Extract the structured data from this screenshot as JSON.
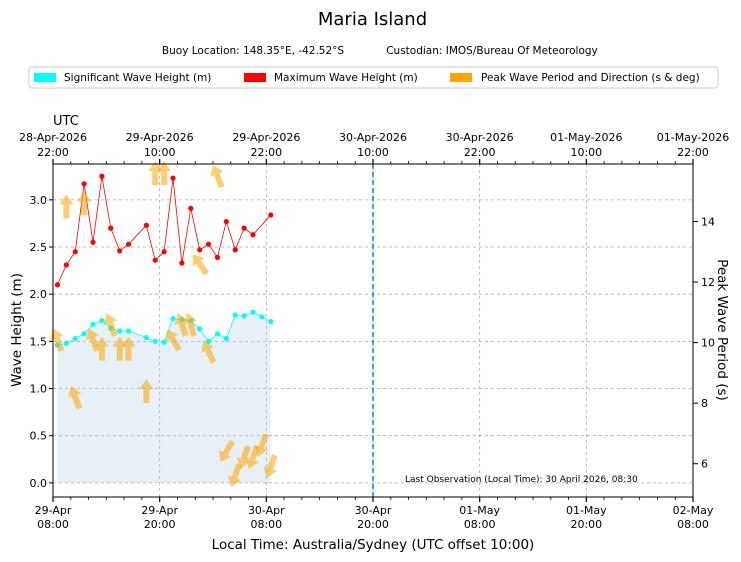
{
  "chart_data": {
    "type": "line",
    "title": "Maria Island",
    "subtitle": {
      "buoy_location": "Buoy Location: 148.35°E, -42.52°S",
      "custodian": "Custodian: IMOS/Bureau Of Meteorology"
    },
    "legend": [
      {
        "label": "Significant Wave Height (m)",
        "color": "#00ffff"
      },
      {
        "label": "Maximum Wave Height (m)",
        "color": "#ff0000"
      },
      {
        "label": "Peak Wave Period and Direction (s & deg)",
        "color": "#ffa500"
      }
    ],
    "legend_placement": "top",
    "xlabel": "Local Time: Australia/Sydney (UTC offset 10:00)",
    "top_axis_label": "UTC",
    "ylabel": "Wave Height (m)",
    "y2label": "Peak Wave Period (s)",
    "x_range_hours": [
      0,
      72
    ],
    "ylim": [
      -0.15,
      3.38
    ],
    "y2lim": [
      4.9,
      15.9
    ],
    "y_ticks": [
      0.0,
      0.5,
      1.0,
      1.5,
      2.0,
      2.5,
      3.0
    ],
    "y_tick_labels": [
      "0.0",
      "0.5",
      "1.0",
      "1.5",
      "2.0",
      "2.5",
      "3.0"
    ],
    "y2_ticks": [
      6,
      8,
      10,
      12,
      14
    ],
    "y2_tick_labels": [
      "6",
      "8",
      "10",
      "12",
      "14"
    ],
    "x_ticks": [
      {
        "hours": 0,
        "line1": "29-Apr",
        "line2": "08:00"
      },
      {
        "hours": 12,
        "line1": "29-Apr",
        "line2": "20:00"
      },
      {
        "hours": 24,
        "line1": "30-Apr",
        "line2": "08:00"
      },
      {
        "hours": 36,
        "line1": "30-Apr",
        "line2": "20:00"
      },
      {
        "hours": 48,
        "line1": "01-May",
        "line2": "08:00"
      },
      {
        "hours": 60,
        "line1": "01-May",
        "line2": "20:00"
      },
      {
        "hours": 72,
        "line1": "02-May",
        "line2": "08:00"
      }
    ],
    "top_ticks": [
      {
        "hours": 0,
        "line1": "28-Apr-2026",
        "line2": "22:00"
      },
      {
        "hours": 12,
        "line1": "29-Apr-2026",
        "line2": "10:00"
      },
      {
        "hours": 24,
        "line1": "29-Apr-2026",
        "line2": "22:00"
      },
      {
        "hours": 36,
        "line1": "30-Apr-2026",
        "line2": "10:00"
      },
      {
        "hours": 48,
        "line1": "30-Apr-2026",
        "line2": "22:00"
      },
      {
        "hours": 60,
        "line1": "01-May-2026",
        "line2": "10:00"
      },
      {
        "hours": 72,
        "line1": "01-May-2026",
        "line2": "22:00"
      }
    ],
    "now_line_hours": 36,
    "annotation": "Last Observation (Local Time): 30 April 2026, 08:30",
    "series": [
      {
        "name": "Significant Wave Height (m)",
        "color": "#00ffff",
        "x": [
          0.5,
          1.5,
          2.5,
          3.5,
          4.5,
          5.5,
          6.5,
          7.5,
          8.5,
          10.5,
          11.5,
          12.5,
          13.5,
          14.5,
          15.5,
          16.5,
          17.5,
          18.5,
          19.5,
          20.5,
          21.5,
          22.5,
          23.5,
          24.5
        ],
        "values": [
          1.46,
          1.48,
          1.53,
          1.58,
          1.68,
          1.72,
          1.64,
          1.61,
          1.61,
          1.54,
          1.5,
          1.49,
          1.74,
          1.73,
          1.72,
          1.63,
          1.5,
          1.58,
          1.53,
          1.78,
          1.77,
          1.81,
          1.76,
          1.71
        ]
      },
      {
        "name": "Maximum Wave Height (m)",
        "color": "#ff0000",
        "x": [
          0.5,
          1.5,
          2.5,
          3.5,
          4.5,
          5.5,
          6.5,
          7.5,
          8.5,
          10.5,
          11.5,
          12.5,
          13.5,
          14.5,
          15.5,
          16.5,
          17.5,
          18.5,
          19.5,
          20.5,
          21.5,
          22.5,
          24.5
        ],
        "values": [
          2.1,
          2.31,
          2.45,
          3.17,
          2.55,
          3.25,
          2.7,
          2.46,
          2.53,
          2.73,
          2.36,
          2.45,
          3.23,
          2.33,
          2.91,
          2.47,
          2.53,
          2.39,
          2.77,
          2.47,
          2.7,
          2.63,
          2.84
        ]
      },
      {
        "name": "Peak Wave Period and Direction (s & deg)",
        "color": "#ffa500",
        "x": [
          0.5,
          1.5,
          2.5,
          3.5,
          4.5,
          5.5,
          6.5,
          7.5,
          8.5,
          10.5,
          11.5,
          12.5,
          13.5,
          14.5,
          15.5,
          16.5,
          17.5,
          18.5,
          19.5,
          20.5,
          21.5,
          22.5,
          23.5,
          24.5
        ],
        "period_s": [
          10.1,
          14.5,
          8.2,
          14.6,
          10.1,
          9.8,
          10.6,
          9.8,
          9.8,
          8.4,
          15.6,
          15.6,
          10.1,
          10.6,
          10.6,
          12.6,
          9.7,
          15.5,
          6.4,
          5.6,
          6.2,
          6.2,
          6.6,
          5.9
        ],
        "direction_deg": [
          340,
          0,
          340,
          0,
          340,
          0,
          340,
          0,
          0,
          0,
          0,
          0,
          330,
          340,
          345,
          325,
          335,
          340,
          210,
          200,
          200,
          200,
          200,
          200
        ]
      }
    ]
  }
}
